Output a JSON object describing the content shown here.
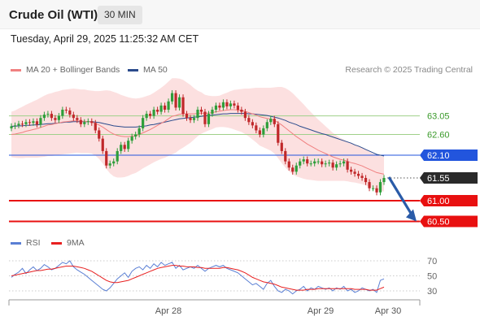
{
  "header": {
    "title": "Crude Oil (WTI)",
    "timeframe": "30 MIN"
  },
  "timestamp": "Tuesday, April 29, 2025 11:25:32 AM CET",
  "legend": {
    "ma20_label": "MA 20 + Bollinger Bands",
    "ma20_color": "#f08080",
    "ma50_label": "MA 50",
    "ma50_color": "#2b4b8c"
  },
  "credit": "Research © 2025 Trading Central",
  "colors": {
    "bull": "#2e9e3a",
    "bear": "#c0282a",
    "band": "#fbd5d5",
    "resistance": "#9fd08a",
    "pivot": "#2255dd",
    "support": "#e81010",
    "arrow": "#2a5ba8",
    "rsi": "#5a7fd4",
    "rsi_ma": "#e82020"
  },
  "chart_data": [
    {
      "type": "candlestick",
      "ylim": [
        60.2,
        63.8
      ],
      "levels": [
        {
          "label": "63.05",
          "value": 63.05,
          "kind": "resistance"
        },
        {
          "label": "62.60",
          "value": 62.6,
          "kind": "resistance"
        },
        {
          "label": "62.10",
          "value": 62.1,
          "kind": "pivot"
        },
        {
          "label": "61.00",
          "value": 61.0,
          "kind": "support"
        },
        {
          "label": "60.50",
          "value": 60.5,
          "kind": "support"
        }
      ],
      "last_price": {
        "label": "61.55",
        "value": 61.55
      },
      "x_ticks": [
        "Apr 28",
        "Apr 29",
        "Apr 30"
      ],
      "forecast_arrow": {
        "from": 61.55,
        "to": 60.5
      },
      "candles_close": [
        62.8,
        62.82,
        62.86,
        62.85,
        62.9,
        62.88,
        62.92,
        62.84,
        63.0,
        63.08,
        63.1,
        63.0,
        62.95,
        63.05,
        63.2,
        63.18,
        63.08,
        63.0,
        62.95,
        62.85,
        62.9,
        62.92,
        62.88,
        62.7,
        62.5,
        62.2,
        61.85,
        61.9,
        61.95,
        62.2,
        62.35,
        62.25,
        62.45,
        62.55,
        62.6,
        62.75,
        63.0,
        63.1,
        63.05,
        63.2,
        63.15,
        63.3,
        63.2,
        63.4,
        63.6,
        63.25,
        63.5,
        63.1,
        63.0,
        62.95,
        63.0,
        63.2,
        63.15,
        62.85,
        63.1,
        63.2,
        63.3,
        63.25,
        63.38,
        63.28,
        63.35,
        63.3,
        63.2,
        63.15,
        63.0,
        62.9,
        62.82,
        62.7,
        62.6,
        62.75,
        62.9,
        62.98,
        62.85,
        62.4,
        62.2,
        61.95,
        61.8,
        61.7,
        61.85,
        61.95,
        62.0,
        61.9,
        61.9,
        61.95,
        61.95,
        61.88,
        61.9,
        61.92,
        61.8,
        61.88,
        61.9,
        61.95,
        61.75,
        61.7,
        61.65,
        61.6,
        61.55,
        61.45,
        61.3,
        61.3,
        61.2,
        61.45,
        61.55
      ],
      "ma20": [
        62.6,
        62.61,
        62.63,
        62.65,
        62.68,
        62.7,
        62.72,
        62.74,
        62.77,
        62.8,
        62.83,
        62.84,
        62.86,
        62.88,
        62.9,
        62.91,
        62.92,
        62.93,
        62.93,
        62.92,
        62.92,
        62.91,
        62.9,
        62.87,
        62.83,
        62.78,
        62.72,
        62.66,
        62.61,
        62.58,
        62.56,
        62.55,
        62.55,
        62.56,
        62.57,
        62.6,
        62.64,
        62.68,
        62.72,
        62.77,
        62.82,
        62.87,
        62.92,
        62.98,
        63.04,
        63.06,
        63.09,
        63.1,
        63.1,
        63.1,
        63.1,
        63.11,
        63.12,
        63.11,
        63.12,
        63.13,
        63.15,
        63.16,
        63.18,
        63.19,
        63.2,
        63.2,
        63.19,
        63.18,
        63.16,
        63.13,
        63.1,
        63.07,
        63.03,
        63.01,
        62.99,
        62.97,
        62.94,
        62.89,
        62.83,
        62.76,
        62.69,
        62.62,
        62.55,
        62.49,
        62.43,
        62.37,
        62.32,
        62.27,
        62.22,
        62.18,
        62.14,
        62.1,
        62.06,
        62.03,
        62.0,
        61.98,
        61.95,
        61.92,
        61.9,
        61.87,
        61.84,
        61.8,
        61.76,
        61.72,
        61.68,
        61.66,
        61.64
      ],
      "ma50": [
        62.8,
        62.8,
        62.81,
        62.81,
        62.82,
        62.82,
        62.83,
        62.83,
        62.84,
        62.85,
        62.86,
        62.86,
        62.87,
        62.88,
        62.89,
        62.9,
        62.9,
        62.91,
        62.91,
        62.91,
        62.91,
        62.91,
        62.91,
        62.9,
        62.89,
        62.87,
        62.85,
        62.83,
        62.81,
        62.8,
        62.79,
        62.78,
        62.78,
        62.78,
        62.78,
        62.79,
        62.8,
        62.81,
        62.83,
        62.84,
        62.86,
        62.88,
        62.9,
        62.92,
        62.94,
        62.96,
        62.98,
        62.99,
        63.0,
        63.01,
        63.02,
        63.03,
        63.04,
        63.05,
        63.06,
        63.07,
        63.08,
        63.09,
        63.1,
        63.1,
        63.11,
        63.11,
        63.11,
        63.11,
        63.11,
        63.1,
        63.1,
        63.09,
        63.08,
        63.07,
        63.06,
        63.04,
        63.02,
        63.0,
        62.97,
        62.94,
        62.9,
        62.87,
        62.84,
        62.8,
        62.77,
        62.74,
        62.71,
        62.68,
        62.65,
        62.62,
        62.6,
        62.57,
        62.54,
        62.51,
        62.48,
        62.45,
        62.42,
        62.39,
        62.35,
        62.32,
        62.28,
        62.24,
        62.2,
        62.16,
        62.12,
        62.1,
        62.08
      ],
      "band_width": [
        0.55,
        0.57,
        0.6,
        0.62,
        0.64,
        0.66,
        0.68,
        0.7,
        0.72,
        0.74,
        0.75,
        0.76,
        0.77,
        0.77,
        0.78,
        0.78,
        0.78,
        0.78,
        0.77,
        0.77,
        0.77,
        0.76,
        0.76,
        0.78,
        0.82,
        0.88,
        0.95,
        1.0,
        1.02,
        1.02,
        1.0,
        0.98,
        0.95,
        0.92,
        0.9,
        0.88,
        0.86,
        0.85,
        0.84,
        0.84,
        0.85,
        0.86,
        0.88,
        0.9,
        0.92,
        0.9,
        0.86,
        0.82,
        0.76,
        0.7,
        0.62,
        0.55,
        0.5,
        0.45,
        0.42,
        0.4,
        0.38,
        0.38,
        0.4,
        0.42,
        0.45,
        0.48,
        0.5,
        0.52,
        0.55,
        0.58,
        0.62,
        0.66,
        0.7,
        0.72,
        0.74,
        0.76,
        0.8,
        0.86,
        0.92,
        0.96,
        0.98,
        0.98,
        0.96,
        0.93,
        0.9,
        0.86,
        0.82,
        0.78,
        0.74,
        0.7,
        0.66,
        0.62,
        0.58,
        0.55,
        0.52,
        0.5,
        0.48,
        0.47,
        0.46,
        0.45,
        0.44,
        0.43,
        0.42,
        0.42,
        0.42,
        0.42,
        0.42
      ]
    },
    {
      "type": "line",
      "name": "RSI",
      "legend": [
        {
          "name": "RSI",
          "color": "#5a7fd4"
        },
        {
          "name": "9MA",
          "color": "#e82020"
        }
      ],
      "ylim": [
        20,
        80
      ],
      "y_ticks": [
        {
          "label": "70",
          "value": 70
        },
        {
          "label": "50",
          "value": 50
        },
        {
          "label": "30",
          "value": 30
        }
      ],
      "rsi": [
        48,
        52,
        55,
        60,
        53,
        58,
        62,
        57,
        60,
        65,
        62,
        58,
        60,
        64,
        68,
        66,
        70,
        62,
        58,
        55,
        52,
        48,
        44,
        40,
        36,
        32,
        30,
        34,
        40,
        46,
        50,
        54,
        48,
        56,
        60,
        62,
        58,
        64,
        60,
        66,
        62,
        68,
        64,
        66,
        68,
        60,
        64,
        58,
        60,
        62,
        60,
        64,
        60,
        56,
        60,
        62,
        64,
        62,
        64,
        60,
        58,
        56,
        54,
        50,
        46,
        42,
        38,
        40,
        36,
        32,
        40,
        44,
        36,
        30,
        28,
        32,
        30,
        26,
        30,
        32,
        36,
        30,
        34,
        32,
        36,
        34,
        32,
        34,
        30,
        34,
        32,
        36,
        30,
        32,
        28,
        30,
        34,
        32,
        30,
        32,
        28,
        44,
        46
      ],
      "ma9": [
        50,
        51,
        52,
        53,
        54,
        55,
        56,
        57,
        57,
        58,
        59,
        59,
        60,
        61,
        62,
        63,
        63,
        63,
        62,
        61,
        60,
        58,
        56,
        53,
        50,
        47,
        44,
        42,
        41,
        41,
        42,
        43,
        44,
        46,
        48,
        50,
        52,
        54,
        56,
        58,
        60,
        61,
        62,
        63,
        64,
        64,
        63,
        63,
        62,
        62,
        62,
        61,
        61,
        60,
        60,
        60,
        60,
        60,
        61,
        61,
        60,
        59,
        58,
        56,
        54,
        51,
        48,
        46,
        44,
        42,
        41,
        40,
        39,
        37,
        35,
        34,
        33,
        32,
        31,
        31,
        31,
        32,
        32,
        32,
        33,
        33,
        33,
        33,
        33,
        33,
        33,
        33,
        33,
        33,
        32,
        32,
        32,
        32,
        31,
        31,
        31,
        33,
        35
      ]
    }
  ]
}
